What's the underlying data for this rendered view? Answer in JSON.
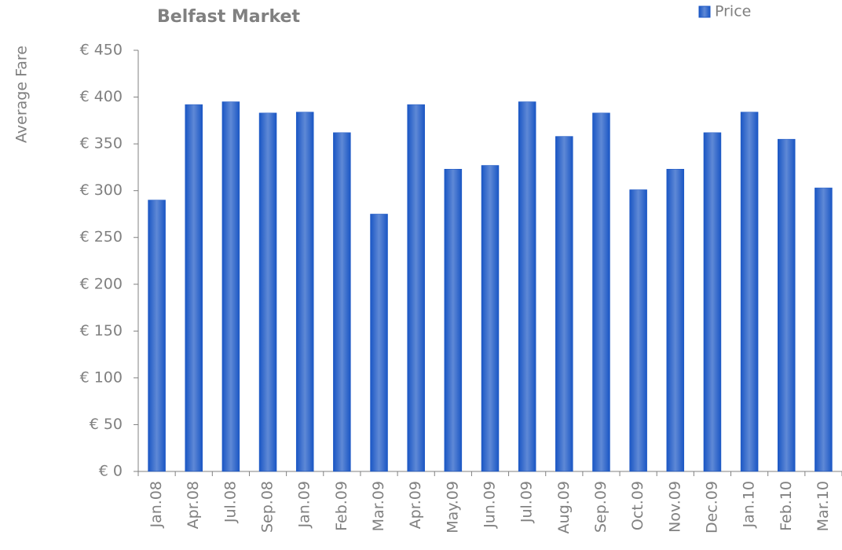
{
  "chart_data": {
    "type": "bar",
    "title": "Belfast Market",
    "y_label": "Average Fare",
    "categories": [
      "Jan.08",
      "Apr.08",
      "Jul.08",
      "Sep.08",
      "Jan.09",
      "Feb.09",
      "Mar.09",
      "Apr.09",
      "May.09",
      "Jun.09",
      "Jul.09",
      "Aug.09",
      "Sep.09",
      "Oct.09",
      "Nov.09",
      "Dec.09",
      "Jan.10",
      "Feb.10",
      "Mar.10"
    ],
    "series": [
      {
        "name": "Price",
        "color": "#1a56c4",
        "values": [
          290,
          392,
          395,
          383,
          384,
          362,
          275,
          392,
          323,
          327,
          395,
          358,
          383,
          301,
          323,
          362,
          384,
          355,
          303
        ]
      }
    ],
    "ylim": [
      0,
      450
    ],
    "yticks": [
      {
        "value": 0,
        "label": "€ 0"
      },
      {
        "value": 50,
        "label": "€ 50"
      },
      {
        "value": 100,
        "label": "€ 100"
      },
      {
        "value": 150,
        "label": "€ 150"
      },
      {
        "value": 200,
        "label": "€ 200"
      },
      {
        "value": 250,
        "label": "€ 250"
      },
      {
        "value": 300,
        "label": "€ 300"
      },
      {
        "value": 350,
        "label": "€ 350"
      },
      {
        "value": 400,
        "label": "€ 400"
      },
      {
        "value": 450,
        "label": "€ 450"
      }
    ],
    "grid": false,
    "legend": "top-right"
  }
}
